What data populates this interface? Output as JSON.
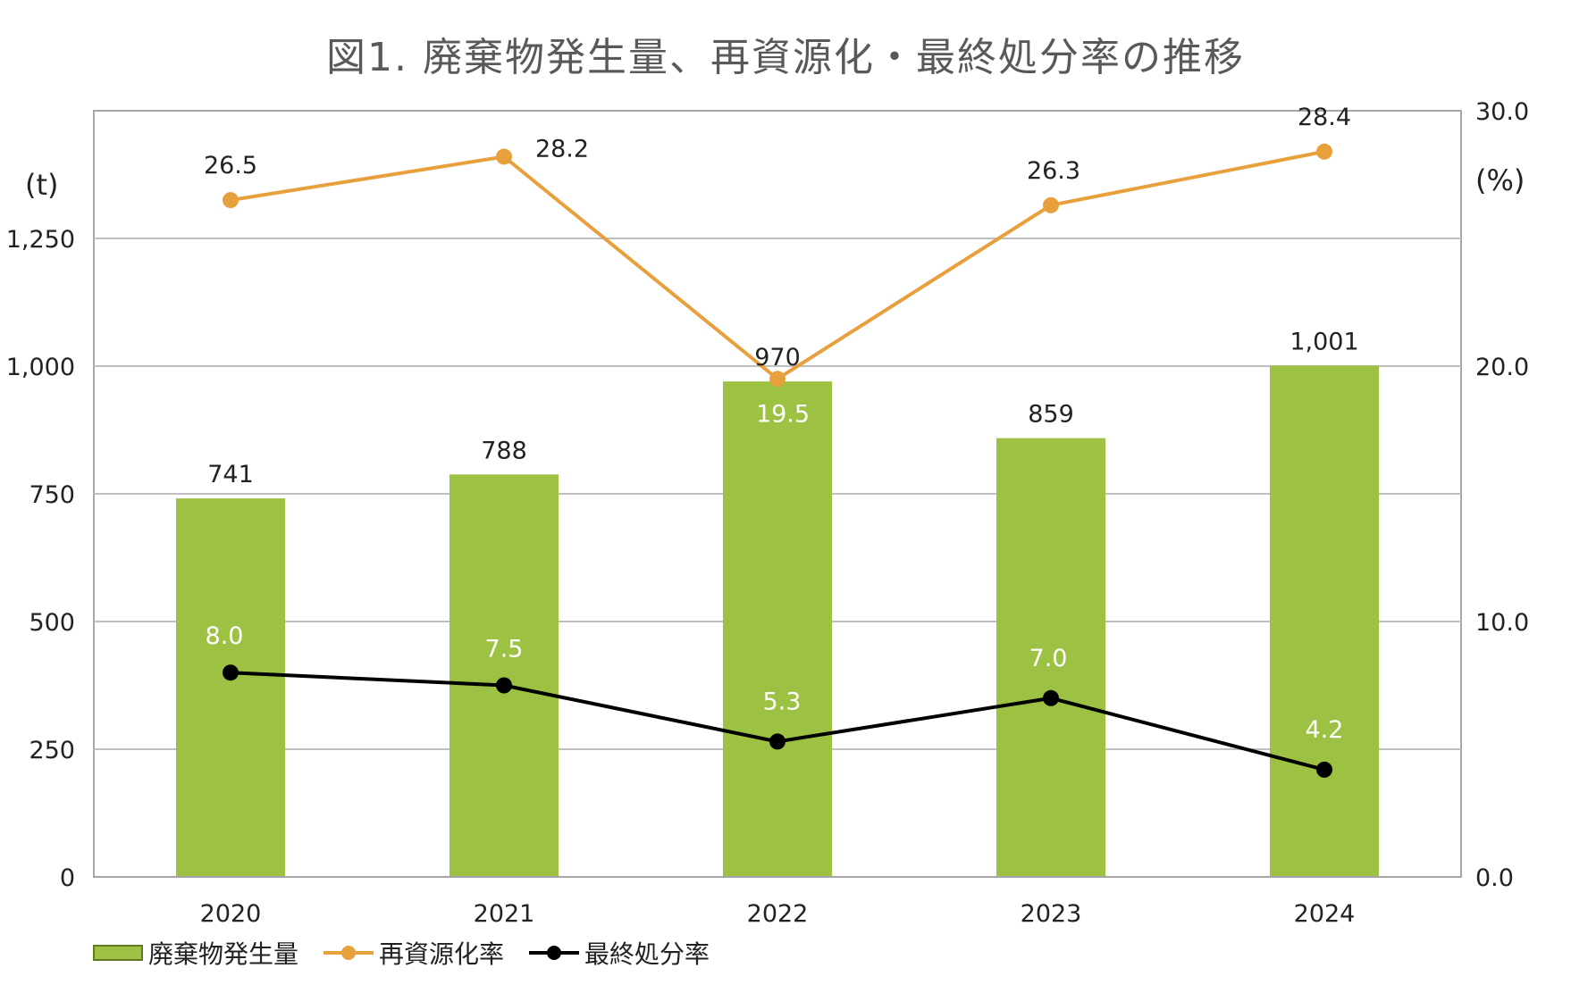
{
  "chart_data": {
    "type": "bar",
    "title": "図1. 廃棄物発生量、再資源化・最終処分率の推移",
    "categories": [
      "2020",
      "2021",
      "2022",
      "2023",
      "2024"
    ],
    "left_axis": {
      "unit": "(t)",
      "ylim": [
        0,
        1500
      ],
      "ticks": [
        0,
        250,
        500,
        750,
        1000,
        1250
      ],
      "tick_labels": [
        "0",
        "250",
        "500",
        "750",
        "1,000",
        "1,250"
      ]
    },
    "right_axis": {
      "unit": "(%)",
      "ylim": [
        0,
        30
      ],
      "ticks": [
        0,
        10,
        20,
        30
      ],
      "tick_labels": [
        "0.0",
        "10.0",
        "20.0",
        "30.0"
      ]
    },
    "grid": true,
    "legend_position": "bottom-left",
    "series": [
      {
        "name": "廃棄物発生量",
        "kind": "bar",
        "axis": "left",
        "color": "#9dc143",
        "values": [
          741,
          788,
          970,
          859,
          1001
        ],
        "labels": [
          "741",
          "788",
          "970",
          "859",
          "1,001"
        ]
      },
      {
        "name": "再資源化率",
        "kind": "line",
        "axis": "right",
        "color": "#e8a03c",
        "values": [
          26.5,
          28.2,
          19.5,
          26.3,
          28.4
        ],
        "labels": [
          "26.5",
          "28.2",
          "19.5",
          "26.3",
          "28.4"
        ]
      },
      {
        "name": "最終処分率",
        "kind": "line",
        "axis": "right",
        "color": "#000000",
        "values": [
          8.0,
          7.5,
          5.3,
          7.0,
          4.2
        ],
        "labels": [
          "8.0",
          "7.5",
          "5.3",
          "7.0",
          "4.2"
        ]
      }
    ]
  }
}
